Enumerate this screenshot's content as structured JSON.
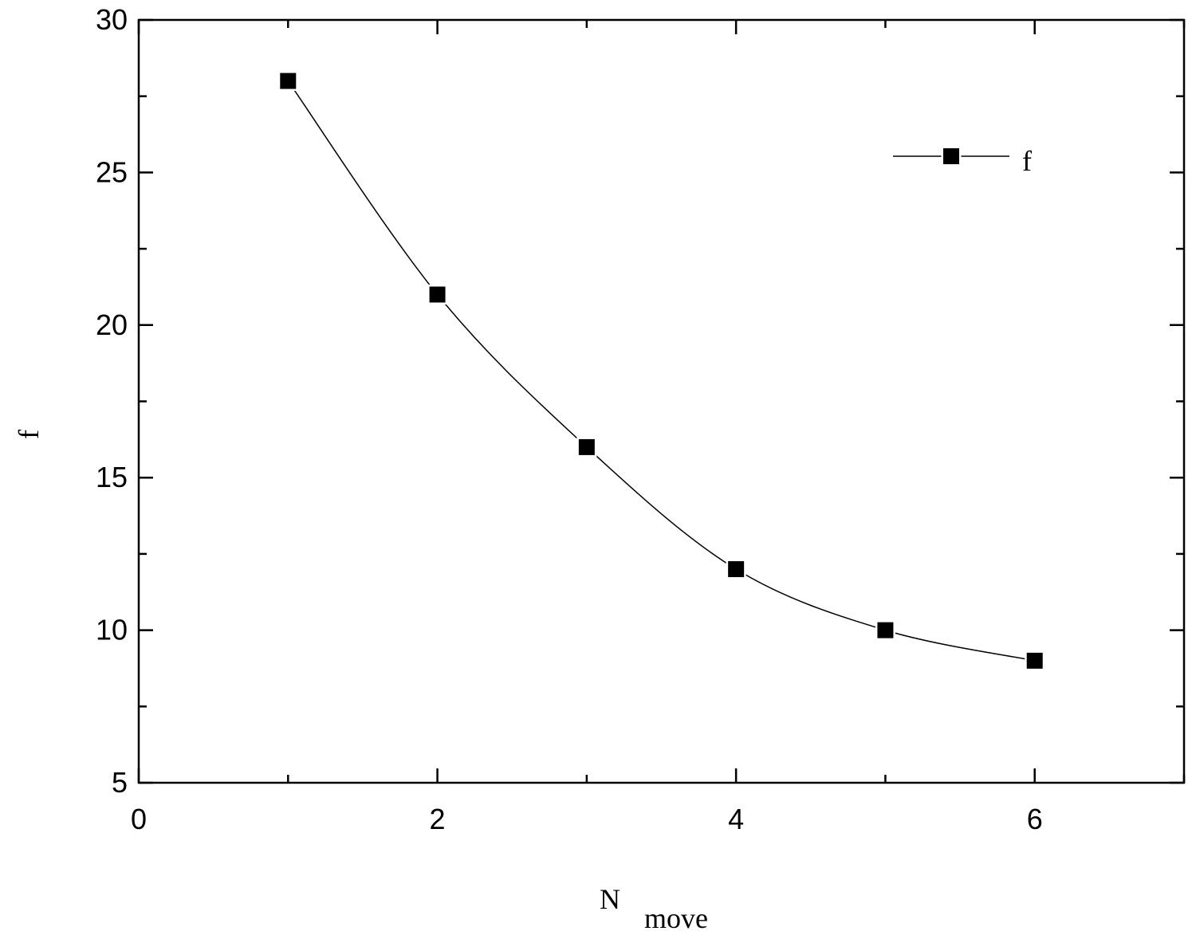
{
  "chart_data": {
    "type": "line",
    "x_label": {
      "main": "N",
      "sub": "move"
    },
    "y_label": "f",
    "x": [
      1,
      2,
      3,
      4,
      5,
      6
    ],
    "series": [
      {
        "name": "f",
        "color": "#000000",
        "values": [
          28,
          21,
          16,
          12,
          10,
          9
        ]
      }
    ],
    "xlim": [
      0,
      7
    ],
    "ylim": [
      5,
      30
    ],
    "xticks": [
      0,
      2,
      4,
      6
    ],
    "xminorticks": [
      1,
      3,
      5,
      7
    ],
    "yticks": [
      5,
      10,
      15,
      20,
      25,
      30
    ],
    "yminorticks": [
      7.5,
      12.5,
      17.5,
      22.5,
      27.5
    ],
    "legend": "upper-right",
    "grid": false,
    "smooth": true,
    "marker": "square"
  }
}
